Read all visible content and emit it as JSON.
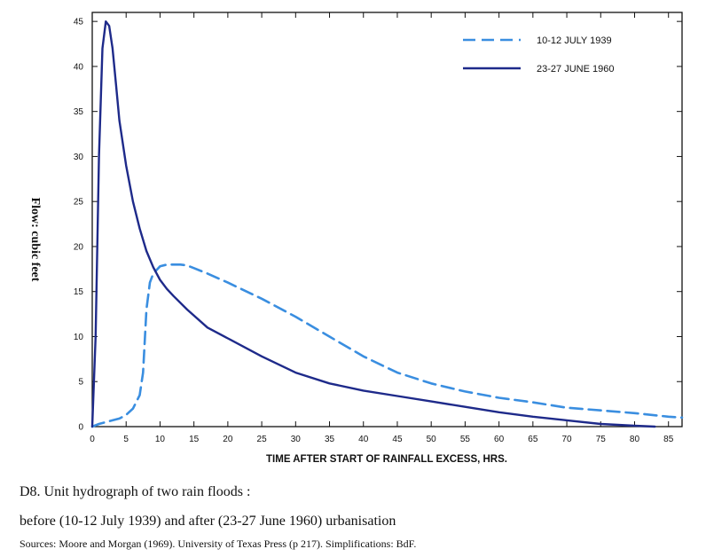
{
  "chart_data": {
    "type": "line",
    "xlabel": "TIME AFTER START OF RAINFALL EXCESS, HRS.",
    "ylabel": "Flow: cubic feet",
    "xlim": [
      0,
      87
    ],
    "ylim": [
      0,
      46
    ],
    "xticks": [
      0,
      5,
      10,
      15,
      20,
      25,
      30,
      35,
      40,
      45,
      50,
      55,
      60,
      65,
      70,
      75,
      80,
      85
    ],
    "yticks": [
      0,
      5,
      10,
      15,
      20,
      25,
      30,
      35,
      40,
      45
    ],
    "grid": false,
    "legend_position": "top-right",
    "series": [
      {
        "name": "10-12 JULY 1939",
        "style": "dashed",
        "color": "#3a8ee0",
        "x": [
          0,
          1,
          2,
          3,
          4,
          5,
          6,
          7,
          7.5,
          8,
          8.5,
          9,
          10,
          11,
          12,
          13,
          14,
          15,
          17,
          20,
          25,
          30,
          35,
          40,
          45,
          50,
          55,
          60,
          65,
          70,
          75,
          80,
          85,
          87
        ],
        "y": [
          0,
          0.3,
          0.5,
          0.7,
          0.9,
          1.3,
          2.0,
          3.5,
          6,
          13,
          16,
          17,
          17.8,
          18,
          18,
          18,
          17.9,
          17.6,
          17,
          16,
          14.2,
          12.2,
          10,
          7.8,
          6.0,
          4.8,
          3.9,
          3.2,
          2.7,
          2.1,
          1.8,
          1.5,
          1.1,
          1.0
        ]
      },
      {
        "name": "23-27 JUNE 1960",
        "style": "solid",
        "color": "#1e2a8a",
        "x": [
          0,
          0.5,
          1,
          1.5,
          2,
          2.5,
          3,
          3.5,
          4,
          5,
          6,
          7,
          8,
          9,
          10,
          11,
          12,
          14,
          17,
          20,
          25,
          30,
          35,
          40,
          45,
          50,
          55,
          60,
          65,
          70,
          75,
          80,
          83
        ],
        "y": [
          0,
          10,
          30,
          42,
          45,
          44.5,
          42,
          38,
          34,
          29,
          25,
          22,
          19.5,
          17.7,
          16.3,
          15.3,
          14.5,
          13,
          11,
          9.8,
          7.8,
          6.0,
          4.8,
          4.0,
          3.4,
          2.8,
          2.2,
          1.6,
          1.1,
          0.7,
          0.3,
          0.1,
          0
        ]
      }
    ]
  },
  "caption": {
    "line1": "D8. Unit hydrograph of two rain floods :",
    "line2": "before (10-12 July 1939) and after (23-27 June 1960) urbanisation",
    "source": "Sources: Moore and Morgan (1969). University of Texas Press (p 217). Simplifications: BdF."
  }
}
